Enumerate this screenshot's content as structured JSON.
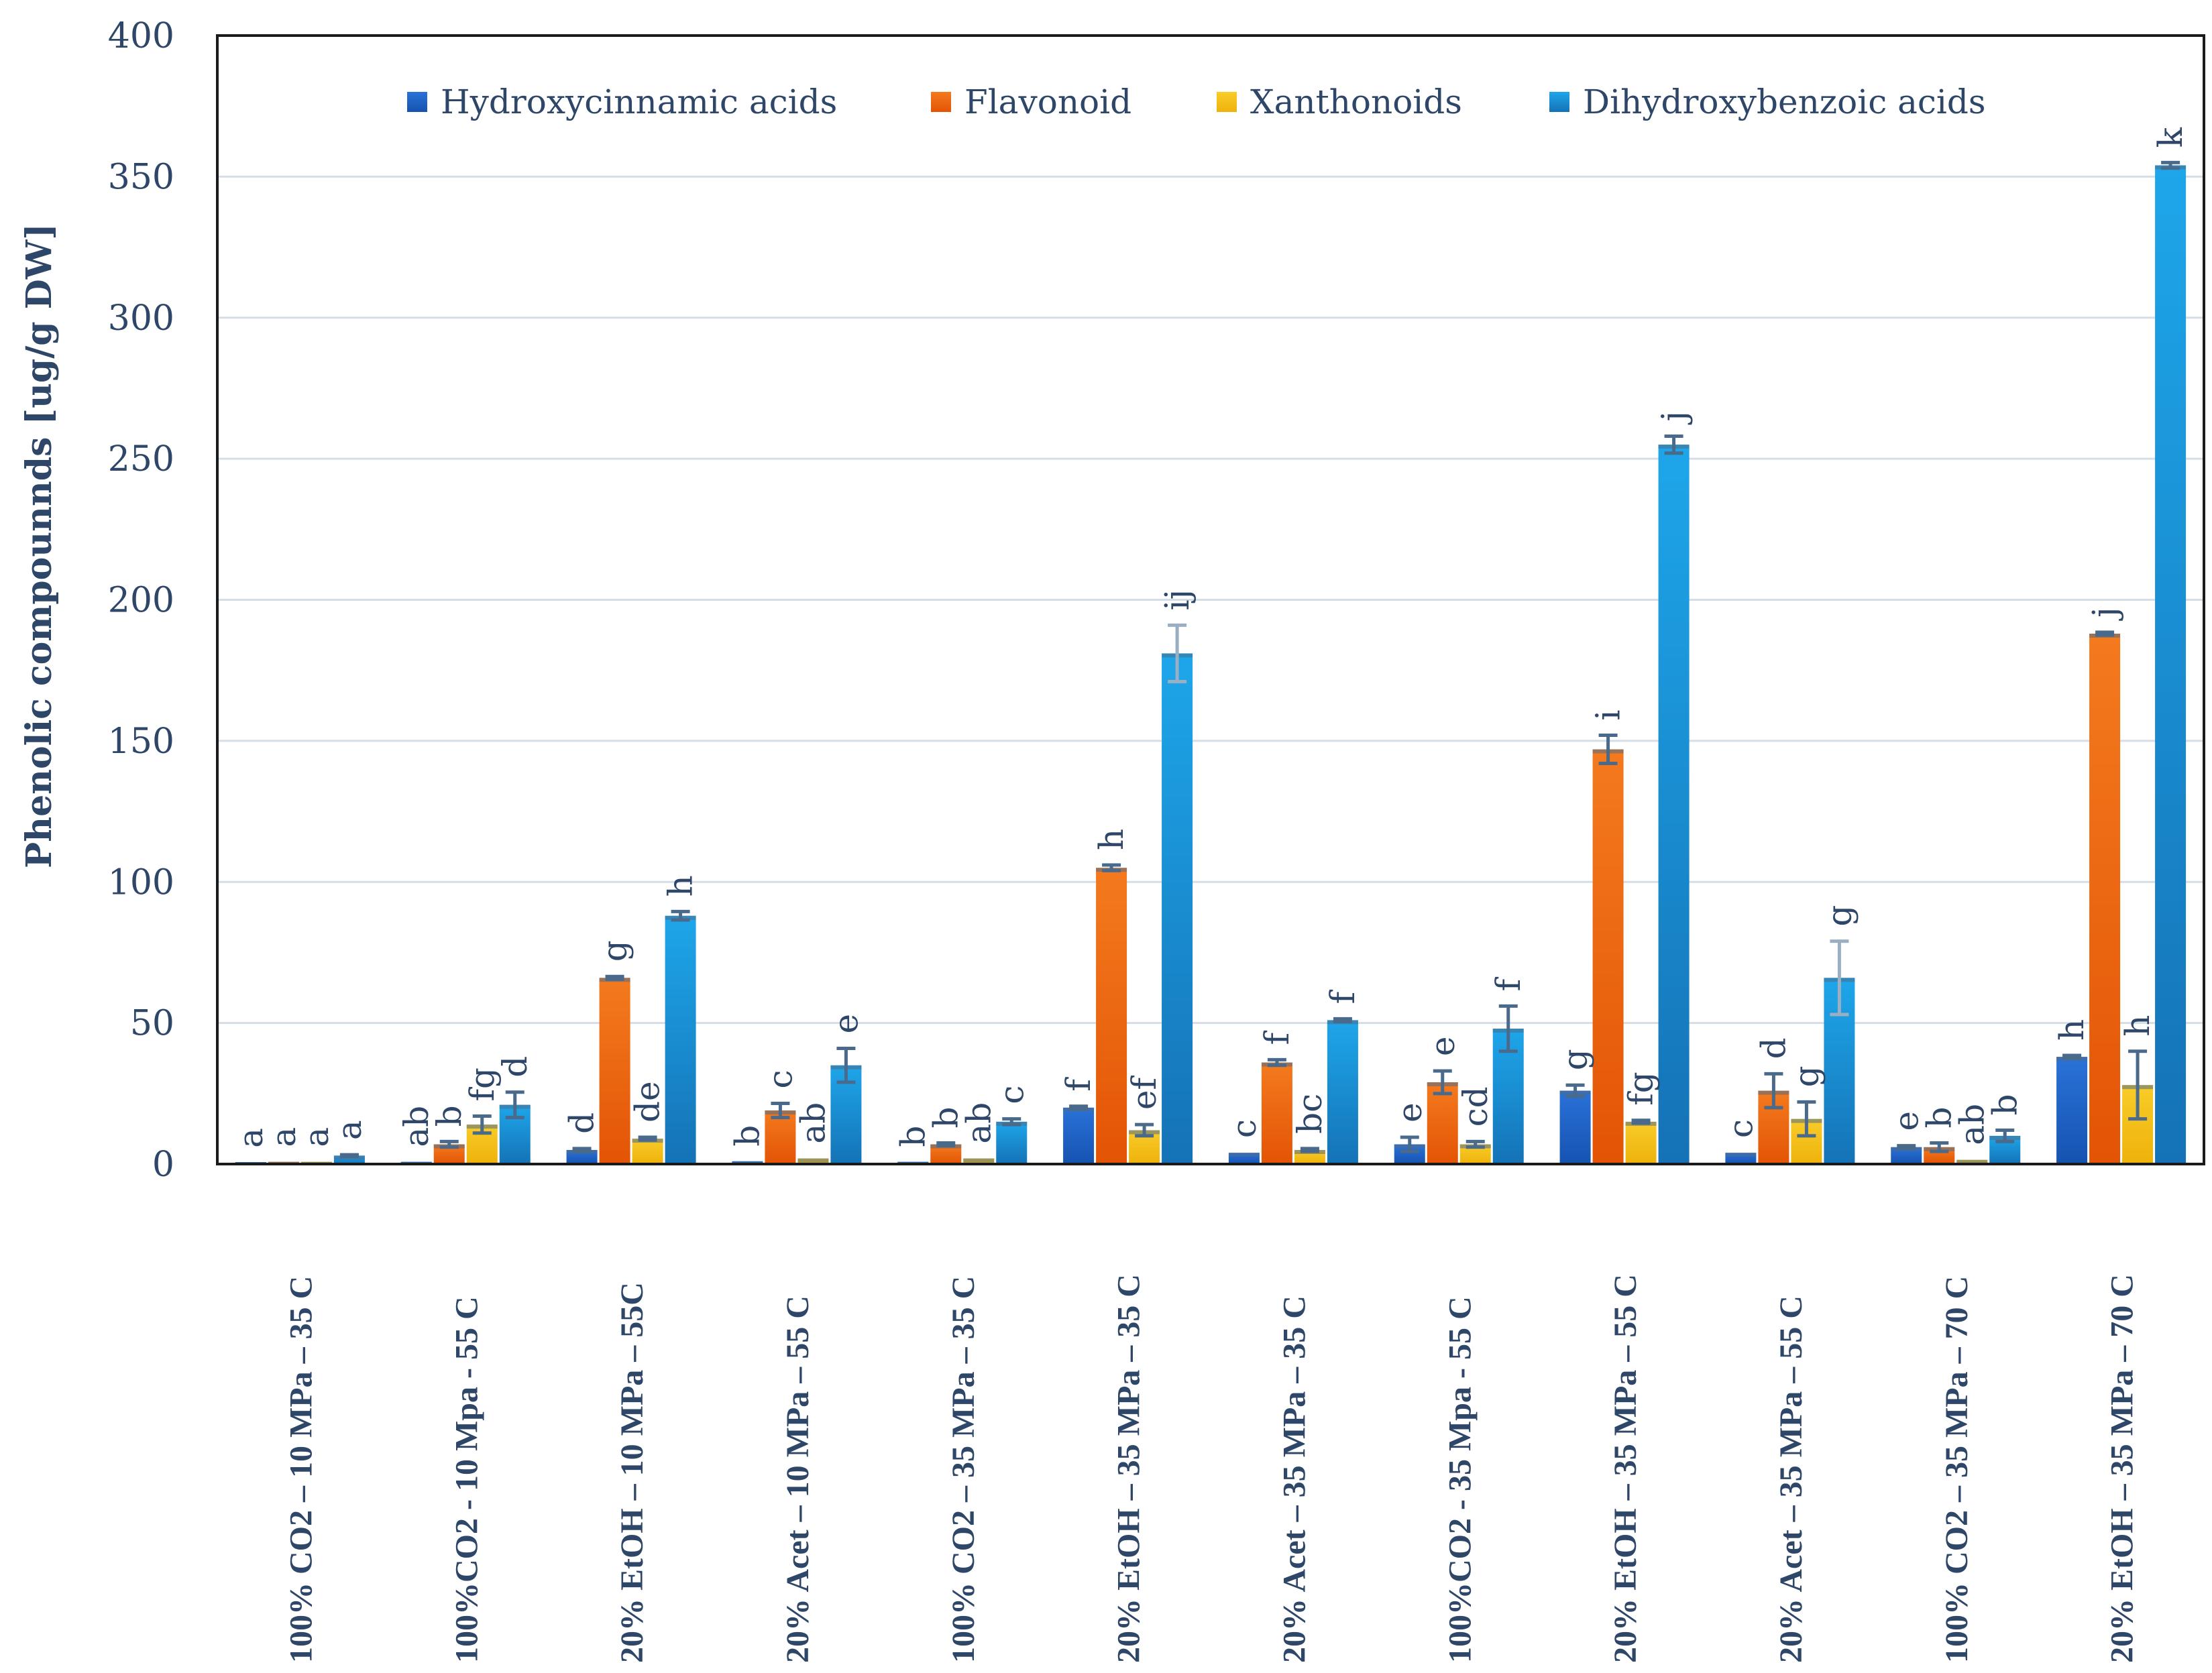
{
  "chart_data": {
    "type": "bar",
    "ylabel": "Phenolic compounnds [ug/g DW]",
    "xlabel": "",
    "ylim": [
      0,
      400
    ],
    "yticks": [
      0,
      50,
      100,
      150,
      200,
      250,
      300,
      350,
      400
    ],
    "legend_position": "top",
    "categories": [
      "100% CO2 – 10 MPa – 35 C",
      "100%CO2 - 10 Mpa - 55 C",
      "20% EtOH – 10 MPa – 55C",
      "20% Acet – 10 MPa – 55 C",
      "100% CO2 – 35 MPa – 35 C",
      "20% EtOH – 35 MPa – 35 C",
      "20% Acet – 35 MPa – 35 C",
      "100%CO2 - 35 Mpa - 55 C",
      "20% EtOH – 35 MPa – 55 C",
      "20% Acet – 35 MPa – 55 C",
      "100% CO2 – 35 MPa – 70 C",
      "20% EtOH – 35 MPa – 70 C"
    ],
    "series": [
      {
        "name": "Hydroxycinnamic acids",
        "color": "#1f5fc4",
        "values": [
          0.5,
          0.8,
          5,
          1,
          0.8,
          20,
          4,
          7,
          26,
          4,
          6,
          38
        ],
        "errors": [
          0,
          0,
          0.5,
          0,
          0,
          0.5,
          0,
          2.5,
          2,
          0,
          0.5,
          0.5
        ],
        "letters": [
          "a",
          "ab",
          "d",
          "b",
          "b",
          "f",
          "c",
          "e",
          "g",
          "c",
          "e",
          "h"
        ]
      },
      {
        "name": "Flavonoid",
        "color": "#f2620c",
        "values": [
          0.8,
          7,
          66,
          19,
          7,
          105,
          36,
          29,
          147,
          26,
          6,
          188
        ],
        "errors": [
          0,
          1,
          0.5,
          2.5,
          0.5,
          1,
          1,
          4,
          5,
          6,
          1.5,
          0.5
        ],
        "letters": [
          "a",
          "b",
          "g",
          "c",
          "b",
          "h",
          "f",
          "e",
          "i",
          "d",
          "b",
          "j"
        ]
      },
      {
        "name": "Xanthonoids",
        "color": "#f4be12",
        "values": [
          0.8,
          14,
          9,
          2,
          2,
          12,
          5,
          7,
          15,
          16,
          1.5,
          28
        ],
        "errors": [
          0,
          3,
          0.5,
          0,
          0,
          2,
          0.5,
          1,
          0.5,
          6,
          0,
          12
        ],
        "letters": [
          "a",
          "fg",
          "de",
          "ab",
          "ab",
          "ef",
          "bc",
          "cd",
          "fg",
          "g",
          "ab",
          "h"
        ]
      },
      {
        "name": "Dihydroxybenzoic acids",
        "color": "#1a95d8",
        "values": [
          3,
          21,
          88,
          35,
          15,
          181,
          51,
          48,
          255,
          66,
          10,
          354
        ],
        "errors": [
          0.3,
          4.5,
          1.5,
          6,
          1,
          10,
          0.5,
          8,
          3,
          13,
          2,
          1
        ],
        "letters": [
          "a",
          "d",
          "h",
          "e",
          "c",
          "ij",
          "f",
          "f",
          "j",
          "g",
          "b",
          "k"
        ]
      }
    ]
  }
}
